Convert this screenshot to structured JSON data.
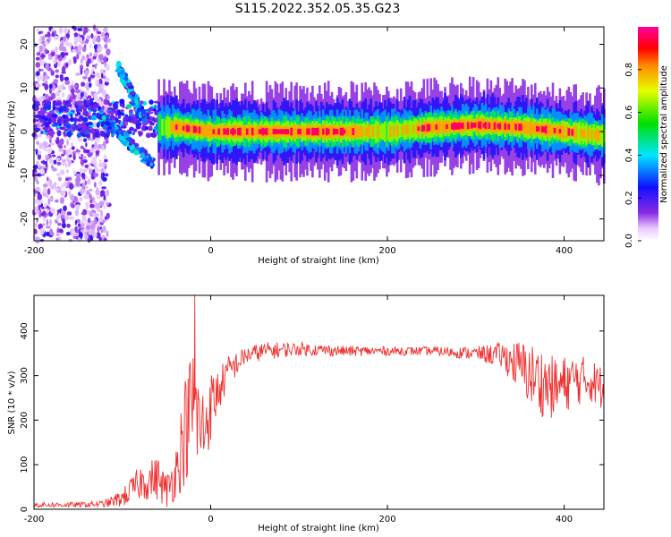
{
  "figure_title": "S115.2022.352.05.35.G23",
  "chart_data": [
    {
      "type": "heatmap",
      "title": "",
      "xlabel": "Height of straight line (km)",
      "ylabel": "Frequency (Hz)",
      "xlim": [
        -200,
        445
      ],
      "ylim": [
        -25,
        24
      ],
      "x_ticks": [
        -200,
        0,
        200,
        400
      ],
      "y_ticks": [
        20,
        10,
        0,
        -10,
        -20
      ],
      "x_tick_labels": [
        "-200",
        "0",
        "200",
        "400"
      ],
      "y_tick_labels": [
        "20",
        "10",
        "0",
        "-10",
        "-20"
      ],
      "colorbar": {
        "label": "Normalized spectral amplitude",
        "range": [
          0,
          1
        ],
        "ticks": [
          0.0,
          0.2,
          0.4,
          0.6,
          0.8
        ],
        "tick_labels": [
          "0.0",
          "0.2",
          "0.4",
          "0.6",
          "0.8"
        ],
        "colormap": "rainbow (white-purple-blue-cyan-green-yellow-red-magenta)"
      },
      "ridge": {
        "description": "spectral energy concentrated near 0 Hz for heights above about -55 km; scattered low-amplitude energy and two diagonal branches below about -50 km",
        "x": [
          -55,
          -40,
          0,
          50,
          100,
          150,
          200,
          250,
          300,
          350,
          400,
          445
        ],
        "center_hz": [
          1,
          1,
          0,
          0,
          0,
          0,
          0,
          1,
          1.5,
          1,
          0,
          -1
        ],
        "peak_amplitude": [
          0.6,
          0.85,
          0.95,
          0.9,
          0.95,
          0.9,
          0.7,
          0.9,
          0.95,
          0.9,
          0.85,
          0.7
        ]
      },
      "branches": [
        {
          "x": [
            -105,
            -95,
            -85,
            -75
          ],
          "hz": [
            15,
            11,
            7,
            3
          ]
        },
        {
          "x": [
            -125,
            -110,
            -95,
            -80,
            -65
          ],
          "hz": [
            4,
            1,
            -2,
            -5,
            -7
          ]
        }
      ]
    },
    {
      "type": "line",
      "title": "",
      "xlabel": "Height of straight line (km)",
      "ylabel": "SNR (10 * v/v)",
      "xlim": [
        -200,
        445
      ],
      "ylim": [
        0,
        480
      ],
      "x_ticks": [
        -200,
        0,
        200,
        400
      ],
      "y_ticks": [
        0,
        100,
        200,
        300,
        400
      ],
      "x_tick_labels": [
        "-200",
        "0",
        "200",
        "400"
      ],
      "y_tick_labels": [
        "0",
        "100",
        "200",
        "300",
        "400"
      ],
      "color": "#f03030",
      "series": [
        {
          "envelope_x": [
            -200,
            -150,
            -120,
            -100,
            -80,
            -60,
            -50,
            -40,
            -30,
            -20,
            -10,
            0,
            10,
            20,
            40,
            60,
            100,
            150,
            200,
            250,
            300,
            330,
            350,
            370,
            390,
            410,
            430,
            445
          ],
          "envelope_y": [
            10,
            10,
            12,
            25,
            60,
            70,
            40,
            80,
            170,
            240,
            170,
            230,
            270,
            310,
            345,
            355,
            360,
            355,
            355,
            355,
            350,
            345,
            320,
            290,
            270,
            290,
            290,
            270
          ],
          "noise_amplitude": [
            6,
            6,
            8,
            20,
            40,
            50,
            40,
            60,
            120,
            140,
            110,
            80,
            50,
            35,
            20,
            20,
            15,
            12,
            10,
            10,
            15,
            30,
            60,
            80,
            70,
            60,
            50,
            50
          ],
          "peak": {
            "x": -18,
            "y": 480
          }
        }
      ]
    }
  ]
}
